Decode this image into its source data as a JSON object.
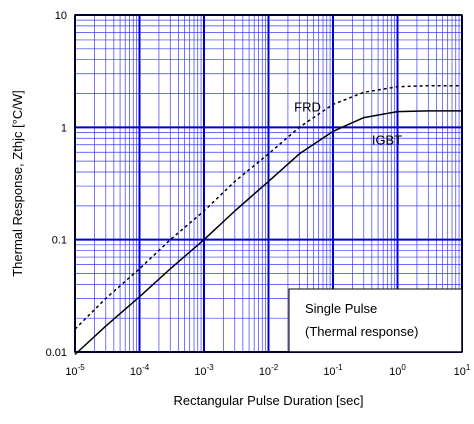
{
  "chart_data": {
    "type": "line",
    "x_scale": "log",
    "y_scale": "log",
    "xlim": [
      1e-05,
      10
    ],
    "ylim": [
      0.01,
      10
    ],
    "xlabel": "Rectangular Pulse Duration [sec]",
    "ylabel": "Thermal Response, Zthjc [°C/W]",
    "grid": true,
    "x_ticks": [
      {
        "base": "10",
        "exp": "-5",
        "value": 1e-05
      },
      {
        "base": "10",
        "exp": "-4",
        "value": 0.0001
      },
      {
        "base": "10",
        "exp": "-3",
        "value": 0.001
      },
      {
        "base": "10",
        "exp": "-2",
        "value": 0.01
      },
      {
        "base": "10",
        "exp": "-1",
        "value": 0.1
      },
      {
        "base": "10",
        "exp": "0",
        "value": 1
      },
      {
        "base": "10",
        "exp": "1",
        "value": 10
      }
    ],
    "y_ticks": [
      {
        "label": "0.01",
        "value": 0.01
      },
      {
        "label": "0.1",
        "value": 0.1
      },
      {
        "label": "1",
        "value": 1
      },
      {
        "label": "10",
        "value": 10
      }
    ],
    "legend": {
      "position": "bottom-right",
      "line1": "Single Pulse",
      "line2": "(Thermal response)"
    },
    "series": [
      {
        "name": "IGBT",
        "style": "solid",
        "points": [
          [
            1e-05,
            0.0095
          ],
          [
            3e-05,
            0.017
          ],
          [
            0.0001,
            0.031
          ],
          [
            0.0003,
            0.055
          ],
          [
            0.001,
            0.1
          ],
          [
            0.003,
            0.18
          ],
          [
            0.01,
            0.33
          ],
          [
            0.03,
            0.58
          ],
          [
            0.1,
            0.92
          ],
          [
            0.3,
            1.22
          ],
          [
            1,
            1.38
          ],
          [
            3,
            1.4
          ],
          [
            10,
            1.4
          ]
        ]
      },
      {
        "name": "FRD",
        "style": "dashed",
        "points": [
          [
            1e-05,
            0.016
          ],
          [
            3e-05,
            0.03
          ],
          [
            0.0001,
            0.055
          ],
          [
            0.0003,
            0.1
          ],
          [
            0.001,
            0.18
          ],
          [
            0.003,
            0.33
          ],
          [
            0.01,
            0.58
          ],
          [
            0.03,
            1.0
          ],
          [
            0.1,
            1.6
          ],
          [
            0.3,
            2.05
          ],
          [
            1,
            2.3
          ],
          [
            3,
            2.35
          ],
          [
            10,
            2.35
          ]
        ]
      }
    ],
    "series_label_positions": [
      {
        "name": "FRD",
        "x": 0.025,
        "y": 1.38
      },
      {
        "name": "IGBT",
        "x": 0.4,
        "y": 0.7
      }
    ]
  },
  "colors": {
    "grid_major": "#0000cc",
    "grid_minor": "#3a3aff",
    "curve": "#000000",
    "frame": "#000000"
  }
}
